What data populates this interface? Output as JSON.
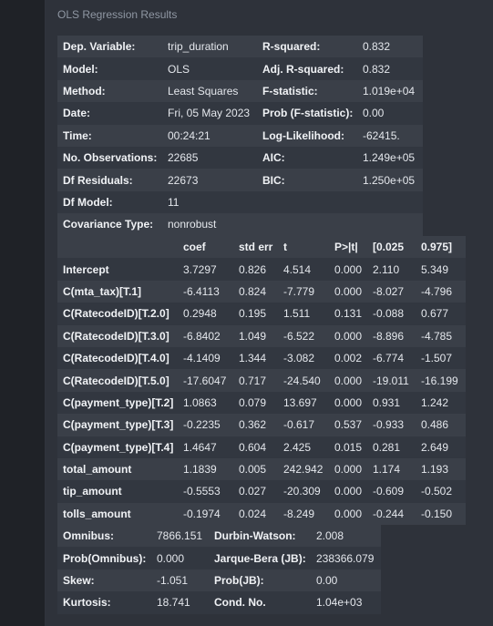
{
  "caption": "OLS Regression Results",
  "summary": [
    [
      "Dep. Variable:",
      "trip_duration",
      "R-squared:",
      "0.832"
    ],
    [
      "Model:",
      "OLS",
      "Adj. R-squared:",
      "0.832"
    ],
    [
      "Method:",
      "Least Squares",
      "F-statistic:",
      "1.019e+04"
    ],
    [
      "Date:",
      "Fri, 05 May 2023",
      "Prob (F-statistic):",
      "0.00"
    ],
    [
      "Time:",
      "00:24:21",
      "Log-Likelihood:",
      "-62415."
    ],
    [
      "No. Observations:",
      "22685",
      "AIC:",
      "1.249e+05"
    ],
    [
      "Df Residuals:",
      "22673",
      "BIC:",
      "1.250e+05"
    ],
    [
      "Df Model:",
      "11",
      "",
      ""
    ],
    [
      "Covariance Type:",
      "nonrobust",
      "",
      ""
    ]
  ],
  "coef_headers": [
    "",
    "coef",
    "std err",
    "t",
    "P>|t|",
    "[0.025",
    "0.975]"
  ],
  "coef_rows": [
    [
      "Intercept",
      "3.7297",
      "0.826",
      "4.514",
      "0.000",
      "2.110",
      "5.349"
    ],
    [
      "C(mta_tax)[T.1]",
      "-6.4113",
      "0.824",
      "-7.779",
      "0.000",
      "-8.027",
      "-4.796"
    ],
    [
      "C(RatecodeID)[T.2.0]",
      "0.2948",
      "0.195",
      "1.511",
      "0.131",
      "-0.088",
      "0.677"
    ],
    [
      "C(RatecodeID)[T.3.0]",
      "-6.8402",
      "1.049",
      "-6.522",
      "0.000",
      "-8.896",
      "-4.785"
    ],
    [
      "C(RatecodeID)[T.4.0]",
      "-4.1409",
      "1.344",
      "-3.082",
      "0.002",
      "-6.774",
      "-1.507"
    ],
    [
      "C(RatecodeID)[T.5.0]",
      "-17.6047",
      "0.717",
      "-24.540",
      "0.000",
      "-19.011",
      "-16.199"
    ],
    [
      "C(payment_type)[T.2]",
      "1.0863",
      "0.079",
      "13.697",
      "0.000",
      "0.931",
      "1.242"
    ],
    [
      "C(payment_type)[T.3]",
      "-0.2235",
      "0.362",
      "-0.617",
      "0.537",
      "-0.933",
      "0.486"
    ],
    [
      "C(payment_type)[T.4]",
      "1.4647",
      "0.604",
      "2.425",
      "0.015",
      "0.281",
      "2.649"
    ],
    [
      "total_amount",
      "1.1839",
      "0.005",
      "242.942",
      "0.000",
      "1.174",
      "1.193"
    ],
    [
      "tip_amount",
      "-0.5553",
      "0.027",
      "-20.309",
      "0.000",
      "-0.609",
      "-0.502"
    ],
    [
      "tolls_amount",
      "-0.1974",
      "0.024",
      "-8.249",
      "0.000",
      "-0.244",
      "-0.150"
    ]
  ],
  "diagnostics": [
    [
      "Omnibus:",
      "7866.151",
      "Durbin-Watson:",
      "2.008"
    ],
    [
      "Prob(Omnibus):",
      "0.000",
      "Jarque-Bera (JB):",
      "238366.079"
    ],
    [
      "Skew:",
      "-1.051",
      "Prob(JB):",
      "0.00"
    ],
    [
      "Kurtosis:",
      "18.741",
      "Cond. No.",
      "1.04e+03"
    ]
  ]
}
